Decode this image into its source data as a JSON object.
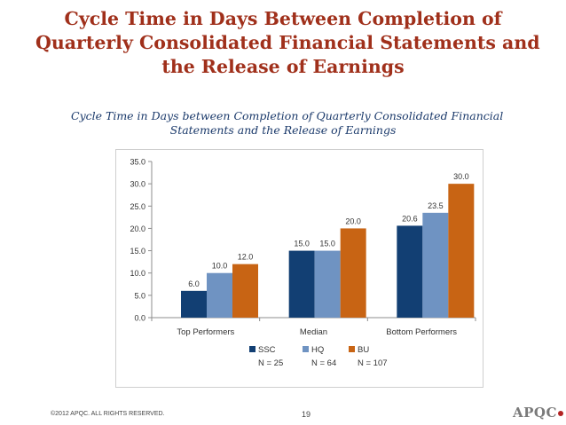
{
  "slide": {
    "title_lines": [
      "Cycle Time in Days Between Completion of",
      "Quarterly Consolidated Financial Statements and",
      "the Release of Earnings"
    ],
    "footer_copyright": "©2012 APQC.  ALL RIGHTS RESERVED.",
    "page_number": "19",
    "logo_text": "APQC"
  },
  "colors": {
    "title": "#a0301b",
    "chart_title": "#1b3a6b"
  },
  "chart_data": {
    "type": "bar",
    "title_lines": [
      "Cycle Time in Days between Completion of Quarterly Consolidated Financial",
      "Statements and the Release of Earnings"
    ],
    "categories": [
      "Top Performers",
      "Median",
      "Bottom Performers"
    ],
    "series": [
      {
        "name": "SSC",
        "note": "N = 25",
        "color": "#123f73",
        "values": [
          6.0,
          15.0,
          20.6
        ]
      },
      {
        "name": "HQ",
        "note": "N = 64",
        "color": "#6f93c2",
        "values": [
          10.0,
          15.0,
          23.5
        ]
      },
      {
        "name": "BU",
        "note": "N = 107",
        "color": "#c86414",
        "values": [
          12.0,
          20.0,
          30.0
        ]
      }
    ],
    "ylim": [
      0,
      35
    ],
    "yticks": [
      0,
      5,
      10,
      15,
      20,
      25,
      30,
      35
    ],
    "grid": false,
    "legend": "bottom",
    "xlabel": "",
    "ylabel": ""
  }
}
